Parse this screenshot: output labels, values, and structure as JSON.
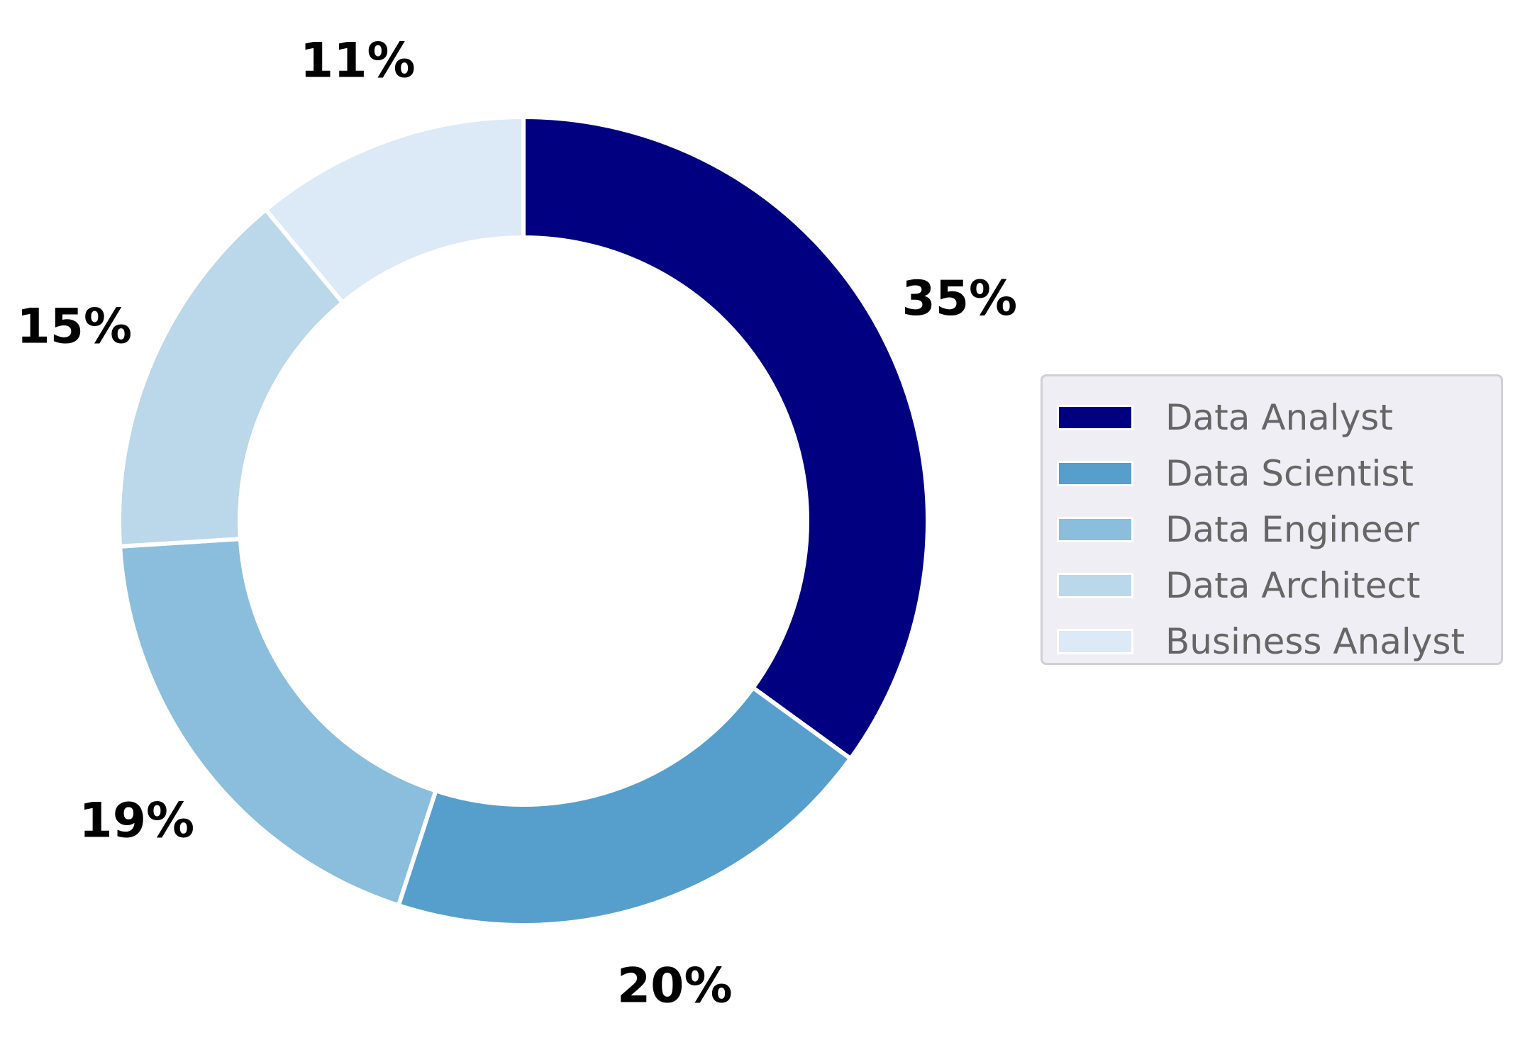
{
  "chart_data": {
    "type": "pie",
    "donut": true,
    "start_angle_deg": 90,
    "direction": "clockwise",
    "legend_position": "right",
    "slices": [
      {
        "label": "Data Analyst",
        "value": 35,
        "display": "35%",
        "color": "#000080"
      },
      {
        "label": "Data Scientist",
        "value": 20,
        "display": "20%",
        "color": "#569fcd"
      },
      {
        "label": "Data Engineer",
        "value": 19,
        "display": "19%",
        "color": "#8bbedc"
      },
      {
        "label": "Data Architect",
        "value": 15,
        "display": "15%",
        "color": "#bbd7ea"
      },
      {
        "label": "Business Analyst",
        "value": 11,
        "display": "11%",
        "color": "#dce9f6"
      }
    ]
  }
}
